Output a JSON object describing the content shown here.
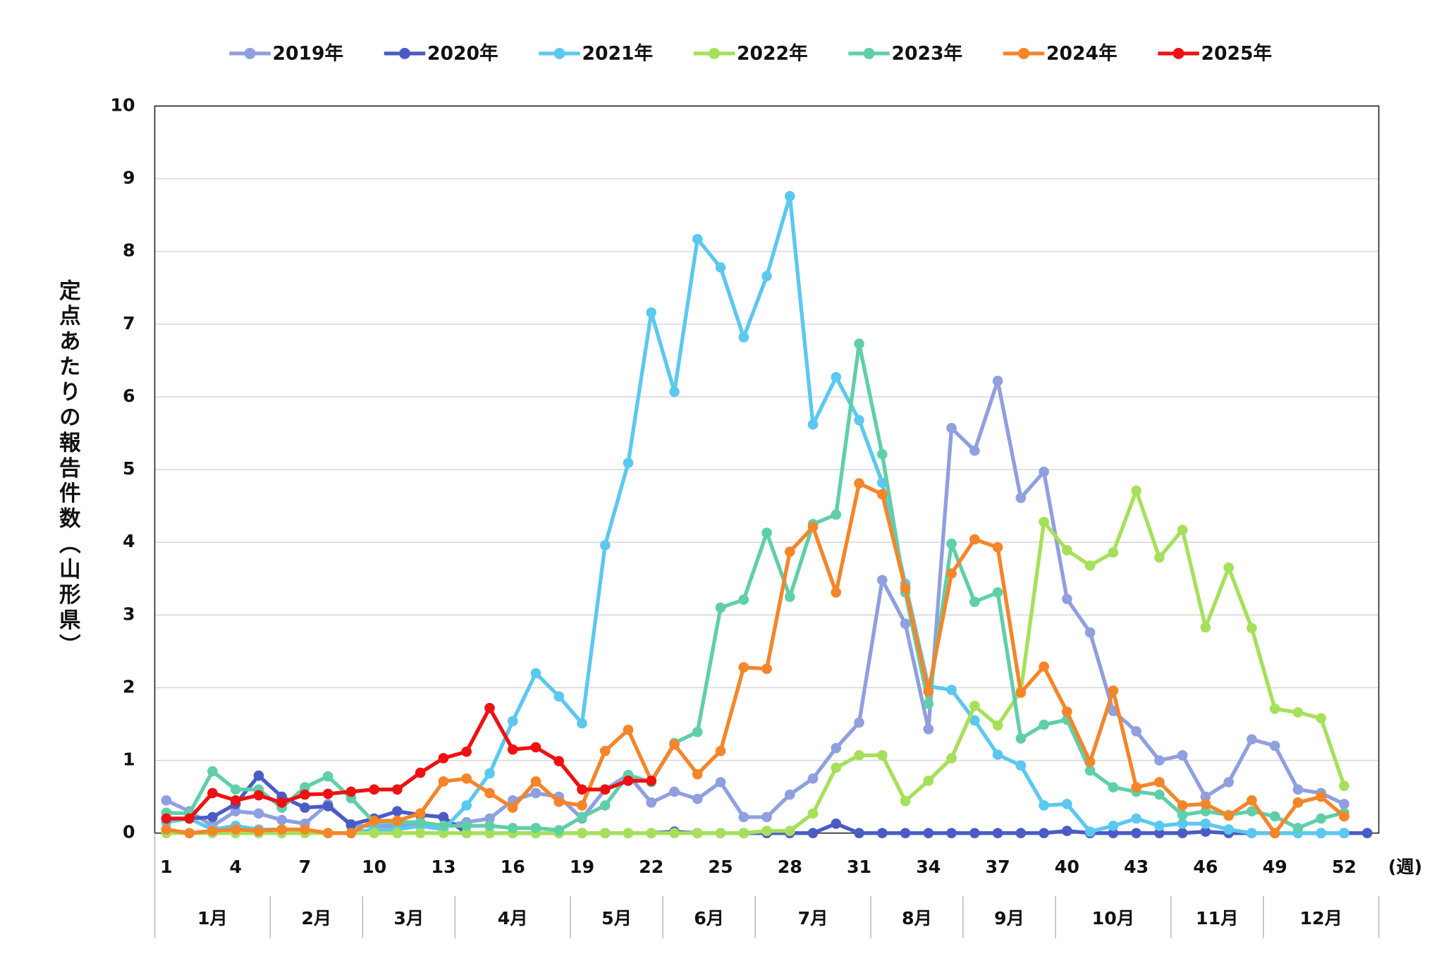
{
  "chart_data": {
    "type": "line",
    "x": [
      1,
      2,
      3,
      4,
      5,
      6,
      7,
      8,
      9,
      10,
      11,
      12,
      13,
      14,
      15,
      16,
      17,
      18,
      19,
      20,
      21,
      22,
      23,
      24,
      25,
      26,
      27,
      28,
      29,
      30,
      31,
      32,
      33,
      34,
      35,
      36,
      37,
      38,
      39,
      40,
      41,
      42,
      43,
      44,
      45,
      46,
      47,
      48,
      49,
      50,
      51,
      52,
      53
    ],
    "xlim": [
      0.5,
      53.5
    ],
    "xticks": [
      1,
      4,
      7,
      10,
      13,
      16,
      19,
      22,
      25,
      28,
      31,
      34,
      37,
      40,
      43,
      46,
      49,
      52
    ],
    "x_unit": "(週)",
    "ylim": [
      0,
      10
    ],
    "yticks": [
      0,
      1,
      2,
      3,
      4,
      5,
      6,
      7,
      8,
      9,
      10
    ],
    "y_label": "定点あたりの報告件数（山形県）",
    "grid": true,
    "legend": "top",
    "months": [
      "1月",
      "2月",
      "3月",
      "4月",
      "5月",
      "6月",
      "7月",
      "8月",
      "9月",
      "10月",
      "11月",
      "12月"
    ],
    "month_edges": [
      0.5,
      5.5,
      9.5,
      13.5,
      18.5,
      22.5,
      26.5,
      31.5,
      35.5,
      39.5,
      44.5,
      48.5,
      53.5
    ],
    "series": [
      {
        "name": "2019年",
        "color": "#8f9fe0",
        "values": [
          0.45,
          0.3,
          0.1,
          0.3,
          0.27,
          0.18,
          0.13,
          0.4,
          0.1,
          0.1,
          0.1,
          0.15,
          0.1,
          0.15,
          0.2,
          0.45,
          0.55,
          0.5,
          0.2,
          0.6,
          0.8,
          0.42,
          0.57,
          0.47,
          0.7,
          0.22,
          0.22,
          0.53,
          0.75,
          1.17,
          1.52,
          3.48,
          2.88,
          1.43,
          5.57,
          5.26,
          6.22,
          4.61,
          4.97,
          3.22,
          2.76,
          1.68,
          1.4,
          1.0,
          1.07,
          0.5,
          0.7,
          1.29,
          1.2,
          0.6,
          0.55,
          0.4,
          null
        ]
      },
      {
        "name": "2020年",
        "color": "#4a5cc4",
        "values": [
          0.2,
          0.2,
          0.22,
          0.4,
          0.79,
          0.5,
          0.35,
          0.37,
          0.12,
          0.2,
          0.3,
          0.25,
          0.22,
          0,
          0,
          0,
          0,
          0,
          0,
          0,
          0,
          0,
          0.02,
          0,
          0,
          0,
          0,
          0,
          0,
          0.13,
          0,
          0,
          0,
          0,
          0,
          0,
          0,
          0,
          0,
          0.03,
          0,
          0,
          0,
          0,
          0,
          0.02,
          0,
          0,
          0,
          0,
          0,
          0,
          0
        ]
      },
      {
        "name": "2021年",
        "color": "#5bc8ef",
        "values": [
          0.15,
          0.2,
          0.05,
          0.1,
          0.05,
          0.05,
          0.02,
          0,
          0,
          0.05,
          0.05,
          0.1,
          0.05,
          0.38,
          0.82,
          1.54,
          2.2,
          1.88,
          1.51,
          3.96,
          5.09,
          7.16,
          6.07,
          8.17,
          7.78,
          6.82,
          7.66,
          8.76,
          5.62,
          6.27,
          5.68,
          4.82,
          3.43,
          2.02,
          1.97,
          1.55,
          1.08,
          0.93,
          0.38,
          0.4,
          0.02,
          0.1,
          0.2,
          0.1,
          0.13,
          0.13,
          0.05,
          0,
          0,
          0,
          0,
          0,
          null
        ]
      },
      {
        "name": "2022年",
        "color": "#a6e05a",
        "values": [
          0,
          0,
          0,
          0,
          0,
          0,
          0,
          0,
          0,
          0,
          0,
          0,
          0,
          0,
          0,
          0,
          0,
          0,
          0,
          0,
          0,
          0,
          0,
          0,
          0,
          0,
          0.03,
          0.03,
          0.27,
          0.9,
          1.07,
          1.07,
          0.44,
          0.72,
          1.03,
          1.75,
          1.48,
          1.95,
          4.28,
          3.89,
          3.68,
          3.86,
          4.71,
          3.79,
          4.17,
          2.83,
          3.65,
          2.82,
          1.71,
          1.66,
          1.58,
          0.65,
          null
        ]
      },
      {
        "name": "2023年",
        "color": "#5fcfa8",
        "values": [
          0.28,
          0.27,
          0.85,
          0.6,
          0.6,
          0.35,
          0.63,
          0.78,
          0.48,
          0.15,
          0.15,
          0.15,
          0.1,
          0.1,
          0.1,
          0.07,
          0.07,
          0.04,
          0.22,
          0.38,
          0.8,
          0.7,
          1.24,
          1.39,
          3.1,
          3.21,
          4.13,
          3.25,
          4.25,
          4.38,
          6.73,
          5.21,
          3.31,
          1.78,
          3.98,
          3.18,
          3.31,
          1.3,
          1.49,
          1.56,
          0.86,
          0.63,
          0.57,
          0.53,
          0.25,
          0.3,
          0.25,
          0.3,
          0.23,
          0.07,
          0.2,
          0.28,
          null
        ]
      },
      {
        "name": "2024年",
        "color": "#f5852a",
        "values": [
          0.05,
          0,
          0.03,
          0.05,
          0.03,
          0.05,
          0.05,
          0,
          0,
          0.17,
          0.17,
          0.27,
          0.71,
          0.75,
          0.55,
          0.35,
          0.71,
          0.43,
          0.38,
          1.13,
          1.42,
          0.72,
          1.22,
          0.81,
          1.13,
          2.28,
          2.26,
          3.87,
          4.21,
          3.31,
          4.81,
          4.66,
          3.37,
          1.95,
          3.57,
          4.04,
          3.93,
          1.93,
          2.29,
          1.67,
          0.98,
          1.96,
          0.63,
          0.7,
          0.38,
          0.4,
          0.24,
          0.45,
          0,
          0.42,
          0.5,
          0.23,
          null
        ]
      },
      {
        "name": "2025年",
        "color": "#ee1111",
        "values": [
          0.2,
          0.2,
          0.55,
          0.45,
          0.52,
          0.42,
          0.53,
          0.54,
          0.57,
          0.6,
          0.6,
          0.83,
          1.03,
          1.12,
          1.72,
          1.15,
          1.18,
          0.99,
          0.6,
          0.6,
          0.72,
          0.72,
          null,
          null,
          null,
          null,
          null,
          null,
          null,
          null,
          null,
          null,
          null,
          null,
          null,
          null,
          null,
          null,
          null,
          null,
          null,
          null,
          null,
          null,
          null,
          null,
          null,
          null,
          null,
          null,
          null,
          null,
          null
        ]
      }
    ]
  }
}
